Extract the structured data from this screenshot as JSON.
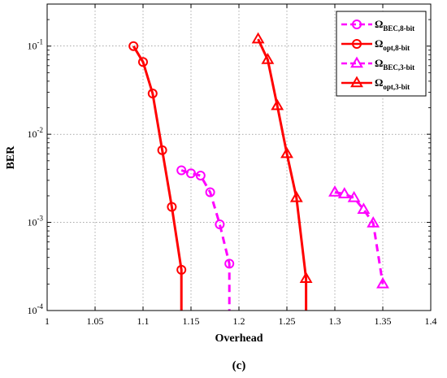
{
  "chart_data": {
    "type": "line",
    "xlabel": "Overhead",
    "ylabel": "BER",
    "caption": "(c)",
    "xlim": [
      1,
      1.4
    ],
    "xticks": [
      1,
      1.05,
      1.1,
      1.15,
      1.2,
      1.25,
      1.3,
      1.35,
      1.4
    ],
    "xtick_labels": [
      "1",
      "1.05",
      "1.1",
      "1.15",
      "1.2",
      "1.25",
      "1.3",
      "1.35",
      "1.4"
    ],
    "yscale": "log",
    "ylim": [
      0.0001,
      0.3
    ],
    "yticks": [
      0.0001,
      0.001,
      0.01,
      0.1
    ],
    "ytick_labels": [
      {
        "base": "10",
        "exp": "-4"
      },
      {
        "base": "10",
        "exp": "-3"
      },
      {
        "base": "10",
        "exp": "-2"
      },
      {
        "base": "10",
        "exp": "-1"
      }
    ],
    "grid": true,
    "legend_position": "top-right",
    "series": [
      {
        "name": "Ω_BEC,8-bit",
        "legend_main": "Ω",
        "legend_sub": "BEC,8-bit",
        "color": "#ff00ff",
        "line_style": "dashed",
        "marker": "circle",
        "x": [
          1.14,
          1.15,
          1.16,
          1.17,
          1.18,
          1.19
        ],
        "y": [
          0.0039,
          0.0036,
          0.0034,
          0.0022,
          0.00095,
          0.00034
        ],
        "tail_to_axis_x": 1.19
      },
      {
        "name": "Ω_opt,8-bit",
        "legend_main": "Ω",
        "legend_sub": "opt,8-bit",
        "color": "#ff0000",
        "line_style": "solid",
        "marker": "circle",
        "x": [
          1.09,
          1.1,
          1.11,
          1.12,
          1.13,
          1.14
        ],
        "y": [
          0.1,
          0.066,
          0.029,
          0.0066,
          0.0015,
          0.00029
        ],
        "tail_to_axis_x": 1.14
      },
      {
        "name": "Ω_BEC,3-bit",
        "legend_main": "Ω",
        "legend_sub": "BEC,3-bit",
        "color": "#ff00ff",
        "line_style": "dashed",
        "marker": "triangle",
        "x": [
          1.3,
          1.31,
          1.32,
          1.33,
          1.34,
          1.35
        ],
        "y": [
          0.0022,
          0.0021,
          0.0019,
          0.0014,
          0.00098,
          0.0002
        ],
        "tail_to_axis_x": null
      },
      {
        "name": "Ω_opt,3-bit",
        "legend_main": "Ω",
        "legend_sub": "opt,3-bit",
        "color": "#ff0000",
        "line_style": "solid",
        "marker": "triangle",
        "x": [
          1.22,
          1.23,
          1.24,
          1.25,
          1.26,
          1.27
        ],
        "y": [
          0.12,
          0.07,
          0.021,
          0.006,
          0.0019,
          0.00023
        ],
        "tail_to_axis_x": 1.27
      }
    ]
  }
}
